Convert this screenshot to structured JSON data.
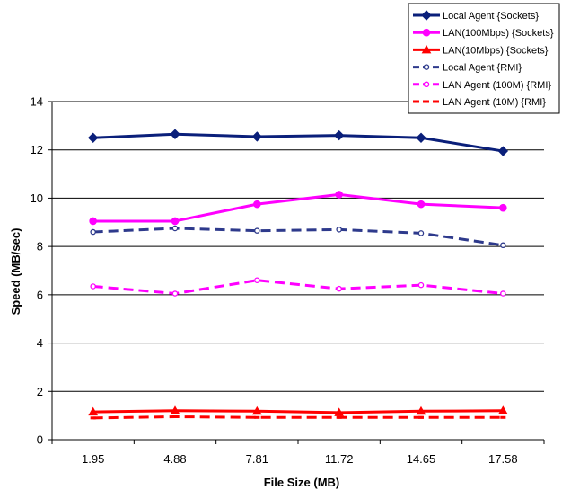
{
  "chart_data": {
    "type": "line",
    "title": "",
    "xlabel": "File Size (MB)",
    "ylabel": "Speed (MB/sec)",
    "categories": [
      "1.95",
      "4.88",
      "7.81",
      "11.72",
      "14.65",
      "17.58"
    ],
    "ylim": [
      0,
      14
    ],
    "yticks": [
      0,
      2,
      4,
      6,
      8,
      10,
      12,
      14
    ],
    "grid": "horizontal",
    "legend_position": "top-right",
    "series": [
      {
        "name": "Local Agent {Sockets}",
        "values": [
          12.5,
          12.65,
          12.55,
          12.6,
          12.5,
          11.95
        ],
        "color": "#0a1f7a",
        "dash": "solid",
        "marker": "diamond"
      },
      {
        "name": "LAN(100Mbps) {Sockets}",
        "values": [
          9.05,
          9.05,
          9.75,
          10.15,
          9.75,
          9.6
        ],
        "color": "#ff00ff",
        "dash": "solid",
        "marker": "circle"
      },
      {
        "name": "LAN(10Mbps) {Sockets}",
        "values": [
          1.15,
          1.2,
          1.18,
          1.12,
          1.18,
          1.2
        ],
        "color": "#ff0000",
        "dash": "solid",
        "marker": "triangle"
      },
      {
        "name": "Local Agent {RMI}",
        "values": [
          8.6,
          8.75,
          8.65,
          8.7,
          8.55,
          8.05
        ],
        "color": "#2e3a8c",
        "dash": "dashed",
        "marker": "open-circle"
      },
      {
        "name": "LAN Agent (100M) {RMI}",
        "values": [
          6.35,
          6.05,
          6.6,
          6.25,
          6.4,
          6.05
        ],
        "color": "#ff00ff",
        "dash": "dashed",
        "marker": "open-circle"
      },
      {
        "name": "LAN Agent (10M) {RMI}",
        "values": [
          0.9,
          0.95,
          0.92,
          0.92,
          0.92,
          0.92
        ],
        "color": "#ff0000",
        "dash": "dashed",
        "marker": "dash"
      }
    ]
  }
}
